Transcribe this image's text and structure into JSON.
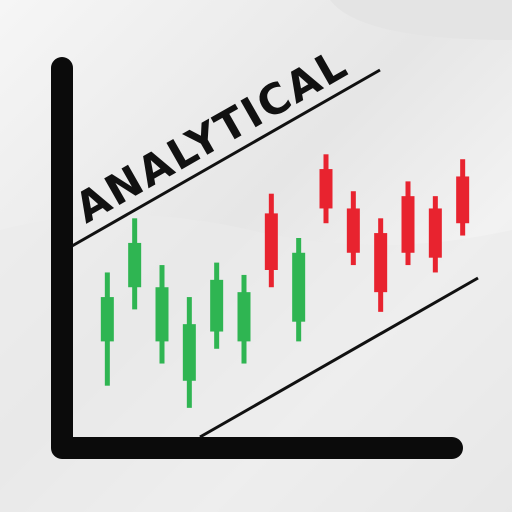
{
  "colors": {
    "up": "#e8232f",
    "down": "#2fb552",
    "axis": "#0b0b0b",
    "text": "#111111"
  },
  "chart_data": {
    "type": "candlestick",
    "title": "ANALYTICAL",
    "grid": false,
    "candles": [
      {
        "index": 1,
        "open": 54,
        "close": 36,
        "high": 64,
        "low": 18,
        "color": "down"
      },
      {
        "index": 2,
        "open": 76,
        "close": 58,
        "high": 86,
        "low": 49,
        "color": "down"
      },
      {
        "index": 3,
        "open": 58,
        "close": 36,
        "high": 67,
        "low": 27,
        "color": "down"
      },
      {
        "index": 4,
        "open": 43,
        "close": 20,
        "high": 54,
        "low": 9,
        "color": "down"
      },
      {
        "index": 5,
        "open": 61,
        "close": 40,
        "high": 68,
        "low": 33,
        "color": "down"
      },
      {
        "index": 6,
        "open": 56,
        "close": 36,
        "high": 63,
        "low": 27,
        "color": "down"
      },
      {
        "index": 7,
        "open": 65,
        "close": 88,
        "high": 96,
        "low": 58,
        "color": "up"
      },
      {
        "index": 8,
        "open": 72,
        "close": 44,
        "high": 78,
        "low": 36,
        "color": "down"
      },
      {
        "index": 9,
        "open": 106,
        "close": 90,
        "high": 112,
        "low": 84,
        "color": "up"
      },
      {
        "index": 10,
        "open": 90,
        "close": 72,
        "high": 97,
        "low": 67,
        "color": "up"
      },
      {
        "index": 11,
        "open": 80,
        "close": 56,
        "high": 86,
        "low": 48,
        "color": "up"
      },
      {
        "index": 12,
        "open": 95,
        "close": 72,
        "high": 101,
        "low": 67,
        "color": "up"
      },
      {
        "index": 13,
        "open": 90,
        "close": 70,
        "high": 95,
        "low": 64,
        "color": "up"
      },
      {
        "index": 14,
        "open": 103,
        "close": 84,
        "high": 110,
        "low": 79,
        "color": "up"
      }
    ],
    "ylim": [
      0,
      130
    ],
    "xlim": [
      0,
      15
    ]
  }
}
